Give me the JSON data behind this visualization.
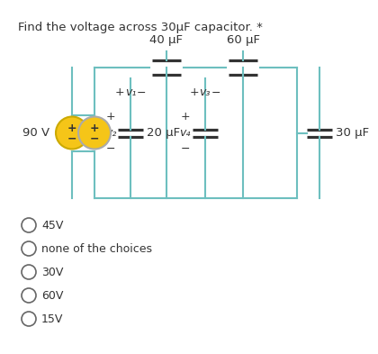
{
  "title": "Find the voltage across 30μF capacitor. *",
  "title_fontsize": 9.5,
  "bg_color": "#ffffff",
  "box_color": "#6dbfbf",
  "text_color": "#333333",
  "cap_color": "#333333",
  "source_fill": "#f5c518",
  "source_edge": "#ccaa00",
  "cap40_label": "40 μF",
  "cap60_label": "60 μF",
  "cap20_label": "20 μF",
  "cap30_label": "30 μF",
  "source_label": "90 V",
  "choices": [
    "45V",
    "none of the choices",
    "30V",
    "60V",
    "15V"
  ]
}
